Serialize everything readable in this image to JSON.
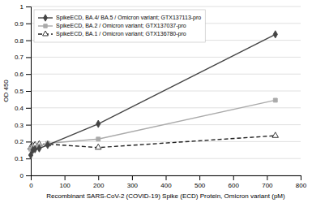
{
  "chart_data": {
    "type": "line",
    "xlabel": "Recombinant SARS-CoV-2 (COVID-19) Spike (ECD) Protein, Omicron variant (pM)",
    "ylabel": "OD 450",
    "x": [
      0,
      6.25,
      12.5,
      25,
      50,
      200,
      725
    ],
    "series": [
      {
        "name": "SpikeECD, BA.4/ BA.5 / Omicron variant; GTX137113-pro",
        "color": "#444444",
        "values": [
          0.12,
          0.15,
          0.155,
          0.16,
          0.18,
          0.305,
          0.835
        ],
        "marker": "diamond",
        "line_style": "solid"
      },
      {
        "name": "SpikeECD, BA.2 / Omicron variant; GTX137037-pro",
        "color": "#aaaaaa",
        "values": [
          0.155,
          0.16,
          0.165,
          0.175,
          0.19,
          0.215,
          0.445
        ],
        "marker": "square",
        "line_style": "solid"
      },
      {
        "name": "SpikeECD, BA.1 / Omicron variant; GTX136780-pro",
        "color": "#222222",
        "values": [
          0.165,
          0.175,
          0.18,
          0.185,
          0.185,
          0.165,
          0.235
        ],
        "marker": "triangle-open",
        "line_style": "dashed"
      }
    ],
    "xlim": [
      0,
      800
    ],
    "ylim": [
      0,
      1.0
    ],
    "xticks": [
      0,
      100,
      200,
      300,
      400,
      500,
      600,
      700,
      800
    ],
    "yticks": [
      0,
      0.1,
      0.2,
      0.3,
      0.4,
      0.5,
      0.6,
      0.7,
      0.8,
      0.9,
      1.0
    ],
    "grid": true,
    "legend": "upper left"
  }
}
